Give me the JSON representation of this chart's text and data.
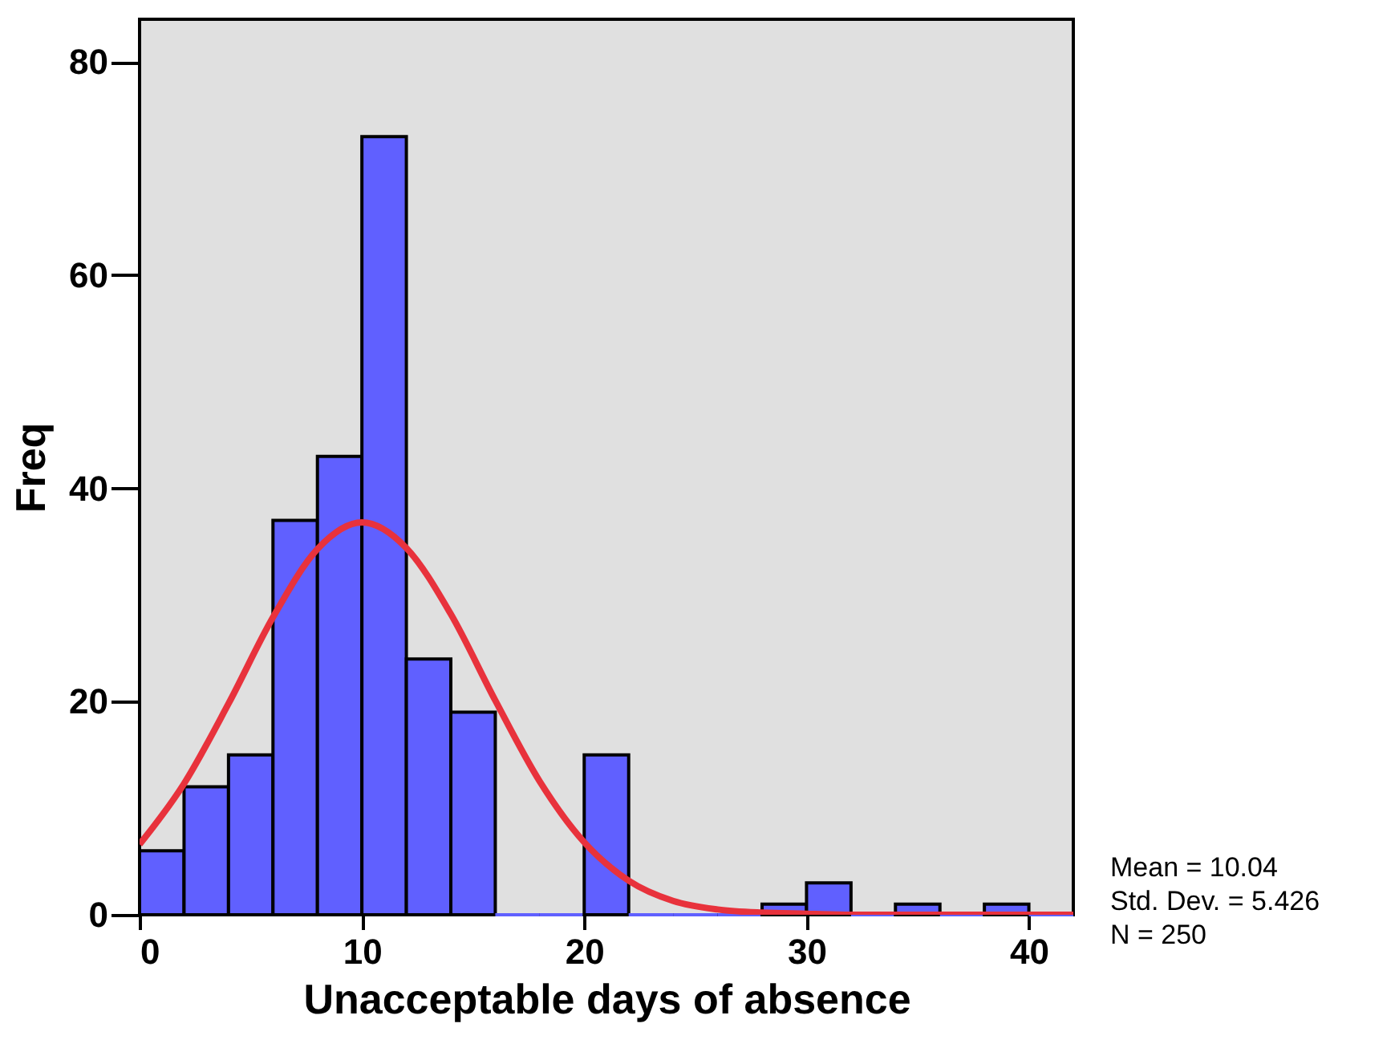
{
  "chart_data": {
    "type": "histogram",
    "xlabel": "Unacceptable days of absence",
    "ylabel": "Freq",
    "bins": [
      0,
      2,
      4,
      6,
      8,
      10,
      12,
      14,
      16,
      18,
      20,
      22,
      24,
      26,
      28,
      30,
      32,
      34,
      36,
      38,
      40,
      42
    ],
    "values": [
      6,
      12,
      15,
      37,
      43,
      73,
      24,
      19,
      0,
      0,
      15,
      0,
      0,
      0,
      1,
      3,
      0,
      1,
      0,
      1,
      0
    ],
    "color": "#6060ff",
    "series": [
      {
        "type": "line",
        "color": "#e8323c",
        "x": [
          0,
          2,
          4,
          6,
          8,
          10,
          12,
          14,
          16,
          18,
          20,
          22,
          24,
          26,
          28,
          30,
          32,
          34,
          36,
          38,
          40,
          42
        ],
        "values": [
          6.6,
          12.3,
          19.8,
          27.9,
          34.3,
          36.8,
          34.4,
          28.2,
          20.1,
          12.5,
          6.8,
          3.2,
          1.3,
          0.5,
          0.2,
          0.1,
          0,
          0,
          0,
          0,
          0,
          0
        ]
      }
    ],
    "xlim": [
      0,
      42
    ],
    "ylim": [
      0,
      84
    ],
    "xticks": [
      0,
      10,
      20,
      30,
      40
    ],
    "yticks": [
      0,
      20,
      40,
      60,
      80
    ],
    "annotations": [
      "Mean = 10.04",
      "Std. Dev. = 5.426",
      "N = 250"
    ]
  }
}
